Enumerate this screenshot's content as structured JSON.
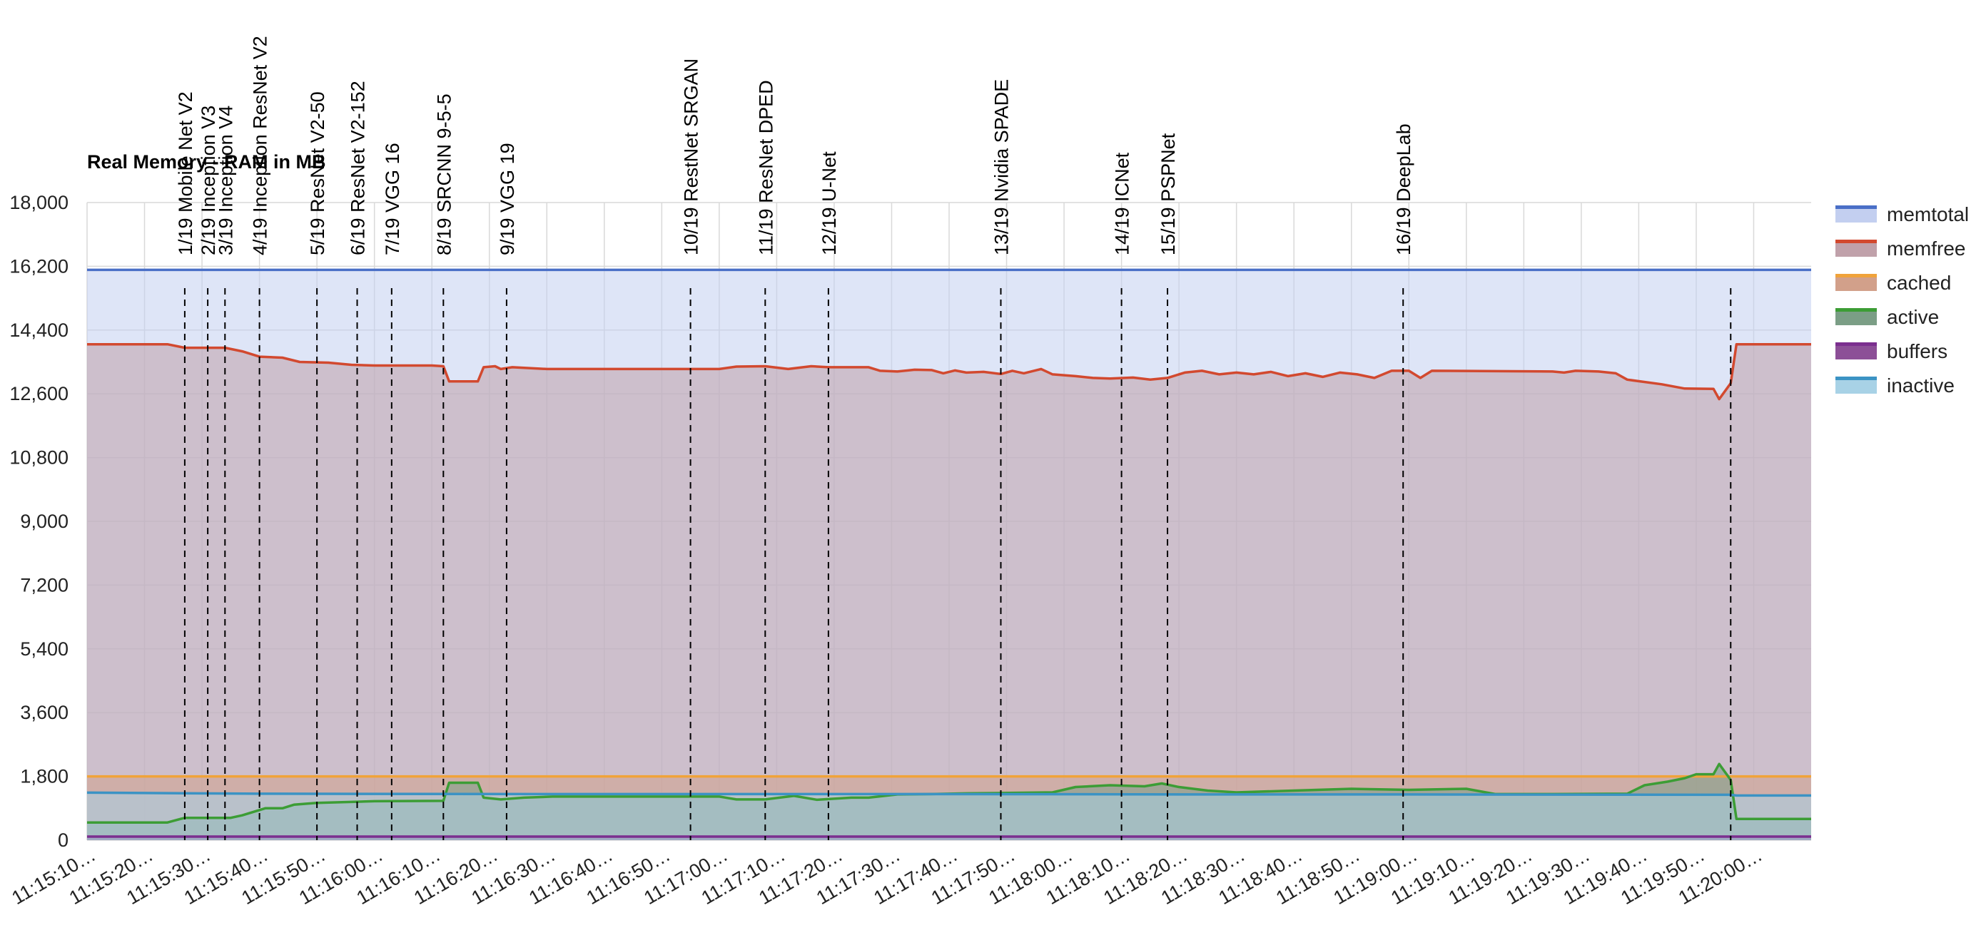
{
  "chart_data": {
    "type": "area",
    "title": "Real Memory - RAM in MB",
    "ylim": [
      0,
      18000
    ],
    "y_ticks": [
      0,
      1800,
      3600,
      5400,
      7200,
      9000,
      10800,
      12600,
      14400,
      16200,
      18000
    ],
    "y_tick_labels": [
      "0",
      "1,800",
      "3,600",
      "5,400",
      "7,200",
      "9,000",
      "10,800",
      "12,600",
      "14,400",
      "16,200",
      "18,000"
    ],
    "x_range": [
      "11:15:10",
      "11:20:10"
    ],
    "x_ticks": [
      "11:15:10",
      "11:15:20",
      "11:15:30",
      "11:15:40",
      "11:15:50",
      "11:16:00",
      "11:16:10",
      "11:16:20",
      "11:16:30",
      "11:16:40",
      "11:16:50",
      "11:17:00",
      "11:17:10",
      "11:17:20",
      "11:17:30",
      "11:17:40",
      "11:17:50",
      "11:18:00",
      "11:18:10",
      "11:18:20",
      "11:18:30",
      "11:18:40",
      "11:18:50",
      "11:19:00",
      "11:19:10",
      "11:19:20",
      "11:19:30",
      "11:19:40",
      "11:19:50",
      "11:20:00"
    ],
    "x_tick_labels": [
      "11:15:10…",
      "11:15:20…",
      "11:15:30…",
      "11:15:40…",
      "11:15:50…",
      "11:16:00…",
      "11:16:10…",
      "11:16:20…",
      "11:16:30…",
      "11:16:40…",
      "11:16:50…",
      "11:17:00…",
      "11:17:10…",
      "11:17:20…",
      "11:17:30…",
      "11:17:40…",
      "11:17:50…",
      "11:18:00…",
      "11:18:10…",
      "11:18:20…",
      "11:18:30…",
      "11:18:40…",
      "11:18:50…",
      "11:19:00…",
      "11:19:10…",
      "11:19:20…",
      "11:19:30…",
      "11:19:40…",
      "11:19:50…",
      "11:20:00…"
    ],
    "grid": true,
    "legend_position": "right",
    "series": [
      {
        "name": "memtotal",
        "color": "#4a6fc7",
        "fill": "#c3cff0",
        "points": [
          [
            "11:15:10",
            16100
          ],
          [
            "11:20:10",
            16100
          ]
        ]
      },
      {
        "name": "memfree",
        "color": "#d2492f",
        "fill": "#c0a1aa",
        "points": [
          [
            "11:15:10",
            14000
          ],
          [
            "11:15:24",
            14000
          ],
          [
            "11:15:27",
            13900
          ],
          [
            "11:15:34",
            13900
          ],
          [
            "11:15:37",
            13800
          ],
          [
            "11:15:40",
            13650
          ],
          [
            "11:15:44",
            13620
          ],
          [
            "11:15:47",
            13500
          ],
          [
            "11:15:52",
            13480
          ],
          [
            "11:15:56",
            13420
          ],
          [
            "11:16:00",
            13400
          ],
          [
            "11:16:10",
            13400
          ],
          [
            "11:16:12",
            13380
          ],
          [
            "11:16:13",
            12950
          ],
          [
            "11:16:18",
            12950
          ],
          [
            "11:16:19",
            13350
          ],
          [
            "11:16:21",
            13380
          ],
          [
            "11:16:22",
            13300
          ],
          [
            "11:16:24",
            13350
          ],
          [
            "11:16:30",
            13300
          ],
          [
            "11:17:00",
            13300
          ],
          [
            "11:17:03",
            13370
          ],
          [
            "11:17:08",
            13380
          ],
          [
            "11:17:12",
            13300
          ],
          [
            "11:17:16",
            13380
          ],
          [
            "11:17:19",
            13350
          ],
          [
            "11:17:26",
            13350
          ],
          [
            "11:17:28",
            13250
          ],
          [
            "11:17:31",
            13230
          ],
          [
            "11:17:34",
            13280
          ],
          [
            "11:17:37",
            13270
          ],
          [
            "11:17:39",
            13180
          ],
          [
            "11:17:41",
            13260
          ],
          [
            "11:17:43",
            13200
          ],
          [
            "11:17:46",
            13220
          ],
          [
            "11:17:49",
            13160
          ],
          [
            "11:17:51",
            13250
          ],
          [
            "11:17:53",
            13180
          ],
          [
            "11:17:56",
            13300
          ],
          [
            "11:17:58",
            13150
          ],
          [
            "11:18:02",
            13100
          ],
          [
            "11:18:05",
            13050
          ],
          [
            "11:18:08",
            13030
          ],
          [
            "11:18:12",
            13060
          ],
          [
            "11:18:15",
            13000
          ],
          [
            "11:18:18",
            13050
          ],
          [
            "11:18:21",
            13200
          ],
          [
            "11:18:24",
            13250
          ],
          [
            "11:18:27",
            13150
          ],
          [
            "11:18:30",
            13200
          ],
          [
            "11:18:33",
            13150
          ],
          [
            "11:18:36",
            13220
          ],
          [
            "11:18:39",
            13100
          ],
          [
            "11:18:42",
            13180
          ],
          [
            "11:18:45",
            13080
          ],
          [
            "11:18:48",
            13200
          ],
          [
            "11:18:51",
            13150
          ],
          [
            "11:18:54",
            13050
          ],
          [
            "11:18:57",
            13250
          ],
          [
            "11:19:00",
            13250
          ],
          [
            "11:19:02",
            13050
          ],
          [
            "11:19:04",
            13250
          ],
          [
            "11:19:25",
            13230
          ],
          [
            "11:19:27",
            13200
          ],
          [
            "11:19:29",
            13250
          ],
          [
            "11:19:33",
            13230
          ],
          [
            "11:19:36",
            13180
          ],
          [
            "11:19:38",
            13000
          ],
          [
            "11:19:44",
            12870
          ],
          [
            "11:19:48",
            12750
          ],
          [
            "11:19:53",
            12740
          ],
          [
            "11:19:54",
            12450
          ],
          [
            "11:19:56",
            12900
          ],
          [
            "11:19:57",
            14000
          ],
          [
            "11:20:10",
            14000
          ]
        ]
      },
      {
        "name": "cached",
        "color": "#f0a33a",
        "fill": "#d2a08a",
        "points": [
          [
            "11:15:10",
            1800
          ],
          [
            "11:20:10",
            1800
          ]
        ]
      },
      {
        "name": "active",
        "color": "#3c9d35",
        "fill": "#7b9e86",
        "points": [
          [
            "11:15:10",
            500
          ],
          [
            "11:15:24",
            500
          ],
          [
            "11:15:27",
            630
          ],
          [
            "11:15:35",
            630
          ],
          [
            "11:15:37",
            700
          ],
          [
            "11:15:41",
            900
          ],
          [
            "11:15:44",
            900
          ],
          [
            "11:15:46",
            1000
          ],
          [
            "11:15:50",
            1050
          ],
          [
            "11:15:56",
            1080
          ],
          [
            "11:16:00",
            1100
          ],
          [
            "11:16:12",
            1110
          ],
          [
            "11:16:13",
            1620
          ],
          [
            "11:16:18",
            1620
          ],
          [
            "11:16:19",
            1200
          ],
          [
            "11:16:22",
            1150
          ],
          [
            "11:16:26",
            1200
          ],
          [
            "11:16:31",
            1230
          ],
          [
            "11:17:00",
            1230
          ],
          [
            "11:17:03",
            1150
          ],
          [
            "11:17:08",
            1150
          ],
          [
            "11:17:13",
            1250
          ],
          [
            "11:17:17",
            1140
          ],
          [
            "11:17:23",
            1200
          ],
          [
            "11:17:26",
            1200
          ],
          [
            "11:17:31",
            1290
          ],
          [
            "11:17:37",
            1300
          ],
          [
            "11:17:43",
            1320
          ],
          [
            "11:17:49",
            1330
          ],
          [
            "11:17:58",
            1350
          ],
          [
            "11:18:02",
            1500
          ],
          [
            "11:18:08",
            1550
          ],
          [
            "11:18:14",
            1520
          ],
          [
            "11:18:17",
            1600
          ],
          [
            "11:18:20",
            1500
          ],
          [
            "11:18:25",
            1400
          ],
          [
            "11:18:30",
            1350
          ],
          [
            "11:18:40",
            1400
          ],
          [
            "11:18:50",
            1450
          ],
          [
            "11:19:00",
            1420
          ],
          [
            "11:19:10",
            1450
          ],
          [
            "11:19:15",
            1300
          ],
          [
            "11:19:20",
            1300
          ],
          [
            "11:19:25",
            1300
          ],
          [
            "11:19:38",
            1310
          ],
          [
            "11:19:41",
            1550
          ],
          [
            "11:19:45",
            1650
          ],
          [
            "11:19:48",
            1750
          ],
          [
            "11:19:50",
            1860
          ],
          [
            "11:19:53",
            1860
          ],
          [
            "11:19:54",
            2150
          ],
          [
            "11:19:56",
            1700
          ],
          [
            "11:19:57",
            600
          ],
          [
            "11:20:10",
            600
          ]
        ]
      },
      {
        "name": "buffers",
        "color": "#7b2f8f",
        "fill": "#8c4f97",
        "points": [
          [
            "11:15:10",
            100
          ],
          [
            "11:20:10",
            100
          ]
        ]
      },
      {
        "name": "inactive",
        "color": "#3b93c4",
        "fill": "#a8d2e6",
        "points": [
          [
            "11:15:10",
            1340
          ],
          [
            "11:15:40",
            1310
          ],
          [
            "11:16:30",
            1300
          ],
          [
            "11:17:30",
            1300
          ],
          [
            "11:18:30",
            1290
          ],
          [
            "11:19:00",
            1290
          ],
          [
            "11:19:56",
            1280
          ],
          [
            "11:19:57",
            1260
          ],
          [
            "11:20:10",
            1260
          ]
        ]
      }
    ],
    "annotations": [
      {
        "x": "11:15:27",
        "label": "1/19 Mobile Net V2"
      },
      {
        "x": "11:15:31",
        "label": "2/19 Inception V3"
      },
      {
        "x": "11:15:34",
        "label": "3/19 Inception V4"
      },
      {
        "x": "11:15:40",
        "label": "4/19 Inception ResNet V2"
      },
      {
        "x": "11:15:50",
        "label": "5/19 ResNet V2-50"
      },
      {
        "x": "11:15:57",
        "label": "6/19 ResNet V2-152"
      },
      {
        "x": "11:16:03",
        "label": "7/19 VGG 16"
      },
      {
        "x": "11:16:12",
        "label": "8/19 SRCNN 9-5-5"
      },
      {
        "x": "11:16:23",
        "label": "9/19 VGG 19"
      },
      {
        "x": "11:16:55",
        "label": "10/19 RestNet SRGAN"
      },
      {
        "x": "11:17:08",
        "label": "11/19 ResNet DPED"
      },
      {
        "x": "11:17:19",
        "label": "12/19 U-Net"
      },
      {
        "x": "11:17:49",
        "label": "13/19 Nvidia SPADE"
      },
      {
        "x": "11:18:10",
        "label": "14/19 ICNet"
      },
      {
        "x": "11:18:18",
        "label": "15/19 PSPNet"
      },
      {
        "x": "11:18:59",
        "label": "16/19 DeepLab"
      },
      {
        "x": "11:19:56",
        "label": ""
      }
    ]
  }
}
